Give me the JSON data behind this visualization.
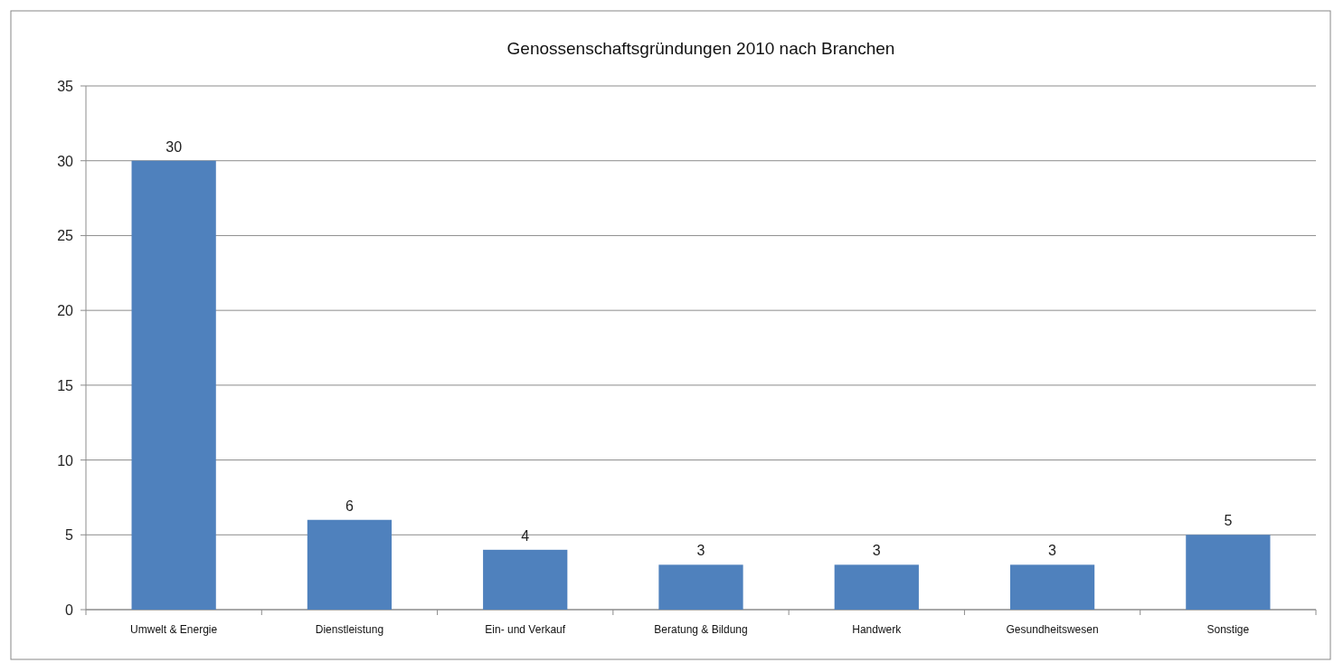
{
  "chart_data": {
    "type": "bar",
    "title": "Genossenschaftsgründungen 2010 nach Branchen",
    "categories": [
      "Umwelt & Energie",
      "Dienstleistung",
      "Ein- und Verkauf",
      "Beratung & Bildung",
      "Handwerk",
      "Gesundheitswesen",
      "Sonstige"
    ],
    "values": [
      30,
      6,
      4,
      3,
      3,
      3,
      5
    ],
    "color": "#4f81bd",
    "ylim": [
      0,
      35
    ],
    "yticks": [
      0,
      5,
      10,
      15,
      20,
      25,
      30,
      35
    ],
    "grid": "y",
    "data_labels": true
  }
}
